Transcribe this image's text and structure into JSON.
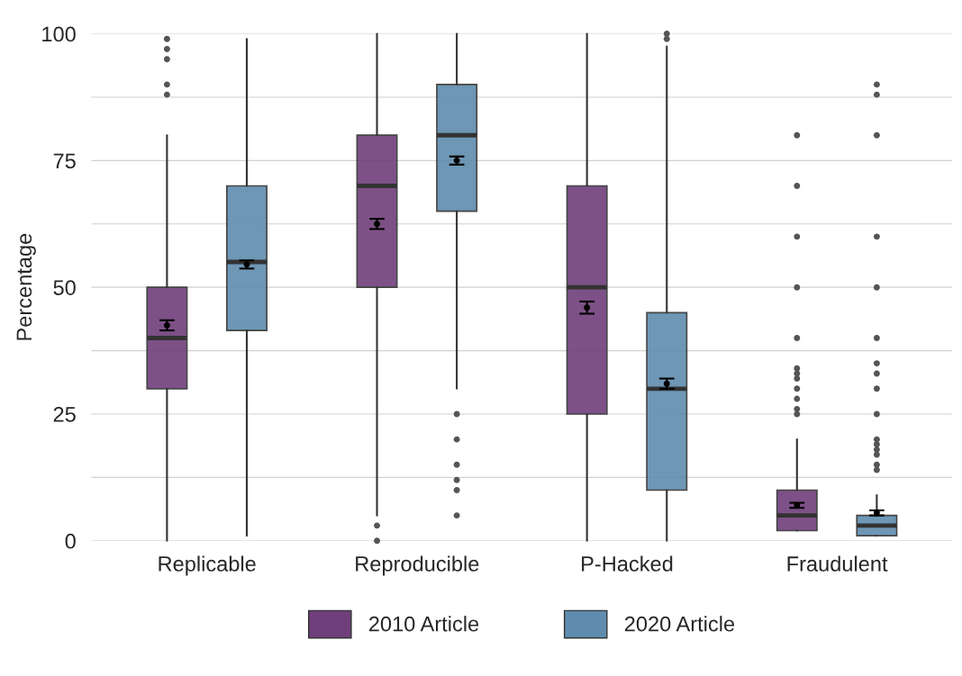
{
  "chart_data": {
    "type": "box",
    "ylabel": "Percentage",
    "categories": [
      "Replicable",
      "Reproducible",
      "P-Hacked",
      "Fraudulent"
    ],
    "ylim": [
      0,
      100
    ],
    "yticks": [
      0,
      {
        "value": 12.5,
        "label": null
      },
      25,
      {
        "value": 37.5,
        "label": null
      },
      50,
      {
        "value": 62.5,
        "label": null
      },
      75,
      {
        "value": 87.5,
        "label": null
      },
      100
    ],
    "grid": "y",
    "legend": "bottom",
    "series": [
      {
        "name": "2010 Article",
        "color": "#6f3f7b",
        "boxes": [
          {
            "low": 0,
            "q1": 30,
            "median": 40,
            "q3": 50,
            "high": 80,
            "outliers": [
              88,
              90,
              95,
              97,
              99
            ]
          },
          {
            "low": 5,
            "q1": 50,
            "median": 70,
            "q3": 80,
            "high": 100,
            "outliers": [
              3,
              0
            ]
          },
          {
            "low": 0,
            "q1": 25,
            "median": 50,
            "q3": 70,
            "high": 100
          },
          {
            "low": 2,
            "q1": 2,
            "median": 5,
            "q3": 10,
            "high": 20,
            "outliers": [
              25,
              26,
              28,
              30,
              32,
              33,
              34,
              40,
              50,
              60,
              70,
              80
            ]
          }
        ]
      },
      {
        "type": "scatter",
        "color": "#000000",
        "x": [
          "Replicable",
          "Reproducible",
          "P-Hacked",
          "Fraudulent"
        ],
        "values": [
          42.5,
          62.5,
          46,
          7
        ],
        "errors": [
          1,
          1,
          1.2,
          0.5
        ]
      },
      {
        "name": "2020 Article",
        "color": "#5f8cae",
        "boxes": [
          {
            "low": 1,
            "q1": 41.5,
            "median": 55,
            "q3": 70,
            "high": 99
          },
          {
            "low": 30,
            "q1": 65,
            "median": 80,
            "q3": 90,
            "high": 100,
            "outliers": [
              25,
              20,
              15,
              12,
              10,
              5
            ]
          },
          {
            "low": 0,
            "q1": 10,
            "median": 30,
            "q3": 45,
            "high": 97.5,
            "outliers": [
              99,
              100
            ]
          },
          {
            "low": 1,
            "q1": 1,
            "median": 3,
            "q3": 5,
            "high": 9,
            "outliers": [
              14,
              15,
              17,
              18,
              19,
              20,
              25,
              30,
              33,
              35,
              40,
              50,
              60,
              80,
              88,
              90
            ]
          }
        ]
      },
      {
        "type": "scatter",
        "color": "#000000",
        "x": [
          "Replicable",
          "Reproducible",
          "P-Hacked",
          "Fraudulent"
        ],
        "values": [
          54.5,
          75,
          31,
          5.5
        ],
        "errors": [
          0.8,
          0.8,
          1,
          0.5
        ]
      }
    ]
  }
}
